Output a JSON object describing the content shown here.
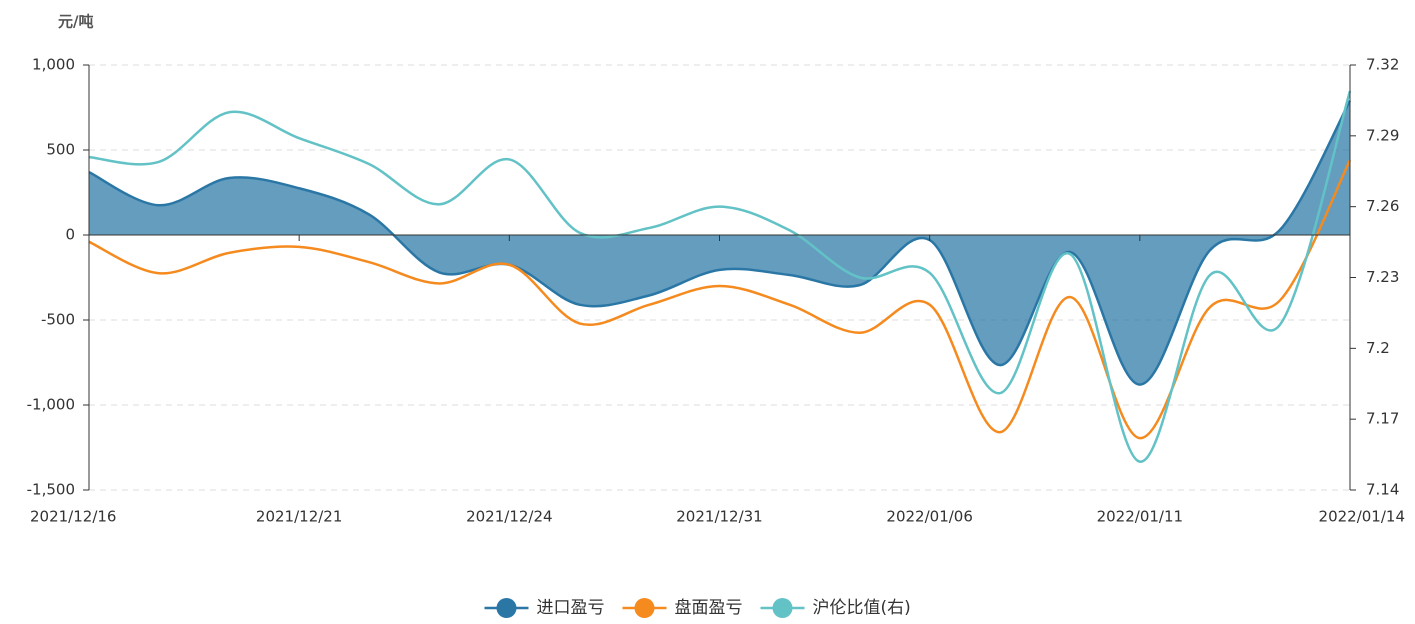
{
  "chart_data": {
    "type": "line",
    "y_label": "元/吨",
    "categories": [
      "2021/12/16",
      null,
      null,
      "2021/12/21",
      null,
      null,
      "2021/12/24",
      null,
      null,
      "2021/12/31",
      null,
      null,
      "2022/01/06",
      null,
      null,
      "2022/01/11",
      null,
      null,
      "2022/01/14"
    ],
    "series": [
      {
        "name": "进口盈亏",
        "color": "#2a77a6",
        "area": true,
        "values": [
          370,
          175,
          335,
          275,
          120,
          -220,
          -175,
          -410,
          -355,
          -205,
          -235,
          -295,
          -30,
          -765,
          -100,
          -880,
          -90,
          30,
          790
        ]
      },
      {
        "name": "盘面盈亏",
        "color": "#f58a1f",
        "values": [
          -40,
          -225,
          -105,
          -70,
          -160,
          -285,
          -175,
          -520,
          -410,
          -300,
          -410,
          -575,
          -410,
          -1160,
          -365,
          -1195,
          -425,
          -385,
          440
        ]
      },
      {
        "name": "沪伦比值(右)",
        "color": "#62c2c6",
        "axis": "y2",
        "values": [
          7.281,
          7.279,
          7.3,
          7.289,
          7.278,
          7.261,
          7.28,
          7.249,
          7.251,
          7.26,
          7.25,
          7.23,
          7.232,
          7.181,
          7.24,
          7.152,
          7.231,
          7.21,
          7.309
        ]
      }
    ],
    "ylim": [
      -1500,
      1000
    ],
    "yticks": [
      {
        "value": -1500,
        "label": "-1,500"
      },
      {
        "value": -1000,
        "label": "-1,000"
      },
      -500,
      0,
      500,
      {
        "value": 1000,
        "label": "1,000"
      }
    ],
    "y2lim": [
      7.14,
      7.32
    ],
    "y2ticks": [
      7.14,
      7.17,
      7.2,
      7.23,
      7.26,
      7.29,
      7.32
    ],
    "grid": true,
    "legend": "bottom"
  }
}
